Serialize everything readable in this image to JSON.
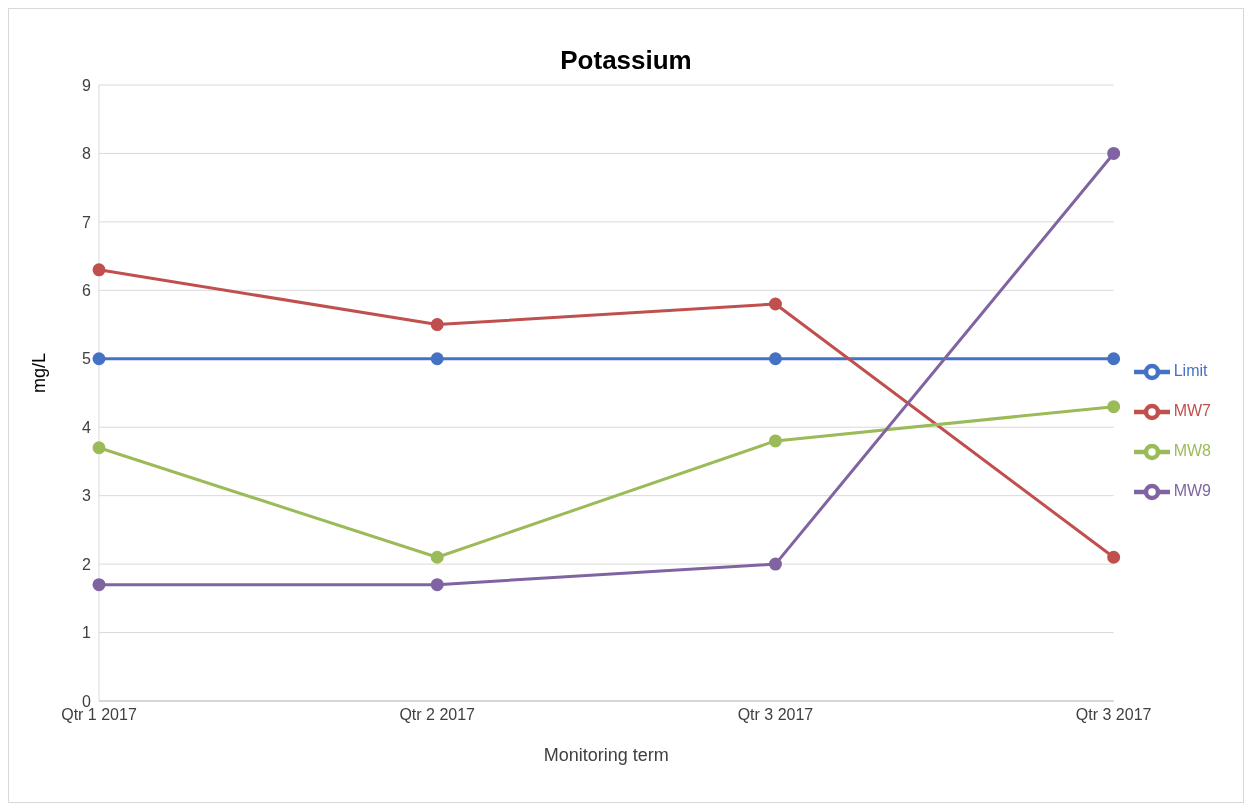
{
  "chart_data": {
    "type": "line",
    "title": "Potassium",
    "xlabel": "Monitoring term",
    "ylabel": "mg/L",
    "categories": [
      "Qtr 1 2017",
      "Qtr 2 2017",
      "Qtr 3 2017",
      "Qtr 3 2017"
    ],
    "series": [
      {
        "name": "Limit",
        "color": "#4472c4",
        "values": [
          5,
          5,
          5,
          5
        ]
      },
      {
        "name": "MW7",
        "color": "#c0504d",
        "values": [
          6.3,
          5.5,
          5.8,
          2.1
        ]
      },
      {
        "name": "MW8",
        "color": "#9bbb59",
        "values": [
          3.7,
          2.1,
          3.8,
          4.3
        ]
      },
      {
        "name": "MW9",
        "color": "#8064a2",
        "values": [
          1.7,
          1.7,
          2.0,
          8.0
        ]
      }
    ],
    "ylim": [
      0,
      9
    ],
    "yticks": [
      0,
      1,
      2,
      3,
      4,
      5,
      6,
      7,
      8,
      9
    ],
    "grid": "y",
    "legend": "right",
    "marker": "circle",
    "line_style": "solid"
  }
}
